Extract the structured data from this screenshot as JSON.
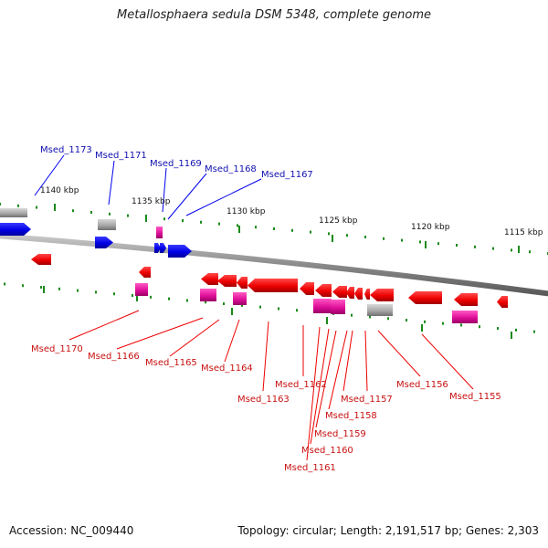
{
  "title": "Metallosphaera sedula DSM 5348, complete genome",
  "footer": {
    "accession": "Accession: NC_009440",
    "summary": "Topology: circular; Length: 2,191,517 bp; Genes: 2,303"
  },
  "colors": {
    "forward_gene": "#0000ee",
    "reverse_gene": "#ee0000",
    "forward_label": "#1010b0",
    "reverse_label": "#c81010",
    "rna_gene": "#e0109a",
    "pseudo_gene": "#a8a8a8",
    "backbone": "#8a8a8a",
    "tick": "#1a8a1a"
  },
  "scale_labels": [
    "1140 kbp",
    "1135 kbp",
    "1130 kbp",
    "1125 kbp",
    "1120 kbp",
    "1115 kbp"
  ],
  "forward_labels": [
    "Msed_1173",
    "Msed_1171",
    "Msed_1169",
    "Msed_1168",
    "Msed_1167"
  ],
  "reverse_labels": [
    "Msed_1170",
    "Msed_1166",
    "Msed_1165",
    "Msed_1164",
    "Msed_1163",
    "Msed_1162",
    "Msed_1161",
    "Msed_1160",
    "Msed_1159",
    "Msed_1158",
    "Msed_1157",
    "Msed_1156",
    "Msed_1155"
  ]
}
